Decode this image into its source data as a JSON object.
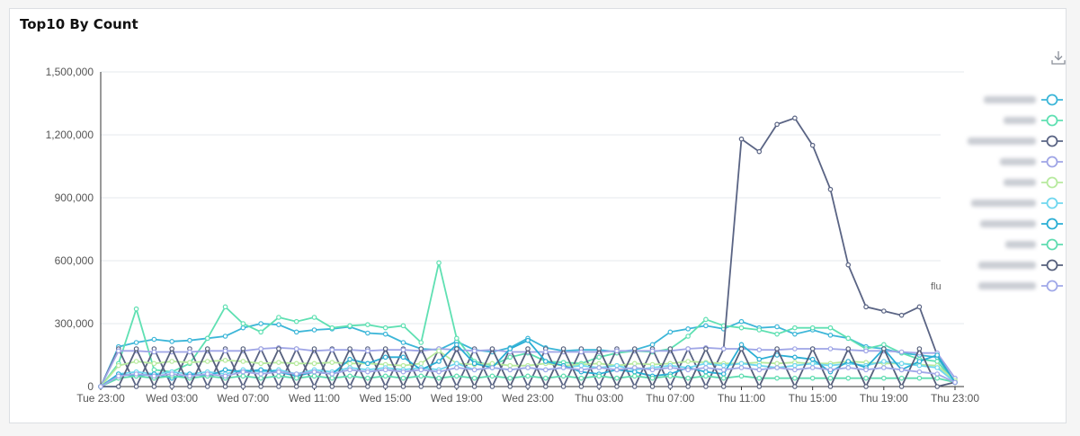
{
  "panel": {
    "title": "Top10 By Count"
  },
  "toolbar": {
    "download_icon": "download-icon"
  },
  "colors": {
    "axis": "#333333",
    "grid": "#e6e9ee",
    "palette": [
      "#3cb6d8",
      "#5fe0b2",
      "#5a6484",
      "#9fa5e6",
      "#b7ea9e",
      "#6fd7ef",
      "#2aaed4",
      "#5fdcb0",
      "#56607c",
      "#a0a8e8"
    ]
  },
  "chart_data": {
    "type": "line",
    "title": "Top10 By Count",
    "xlabel": "",
    "ylabel": "",
    "ylim": [
      0,
      1500000
    ],
    "yticks": [
      0,
      300000,
      600000,
      900000,
      1200000,
      1500000
    ],
    "ytick_labels": [
      "0",
      "300,000",
      "600,000",
      "900,000",
      "1,200,000",
      "1,500,000"
    ],
    "x": [
      "Tue 23:00",
      "Wed 00:00",
      "Wed 01:00",
      "Wed 02:00",
      "Wed 03:00",
      "Wed 04:00",
      "Wed 05:00",
      "Wed 06:00",
      "Wed 07:00",
      "Wed 08:00",
      "Wed 09:00",
      "Wed 10:00",
      "Wed 11:00",
      "Wed 12:00",
      "Wed 13:00",
      "Wed 14:00",
      "Wed 15:00",
      "Wed 16:00",
      "Wed 17:00",
      "Wed 18:00",
      "Wed 19:00",
      "Wed 20:00",
      "Wed 21:00",
      "Wed 22:00",
      "Wed 23:00",
      "Thu 00:00",
      "Thu 01:00",
      "Thu 02:00",
      "Thu 03:00",
      "Thu 04:00",
      "Thu 05:00",
      "Thu 06:00",
      "Thu 07:00",
      "Thu 08:00",
      "Thu 09:00",
      "Thu 10:00",
      "Thu 11:00",
      "Thu 12:00",
      "Thu 13:00",
      "Thu 14:00",
      "Thu 15:00",
      "Thu 16:00",
      "Thu 17:00",
      "Thu 18:00",
      "Thu 19:00",
      "Thu 20:00",
      "Thu 21:00",
      "Thu 22:00",
      "Thu 23:00"
    ],
    "xtick_labels": [
      "Tue 23:00",
      "Wed 03:00",
      "Wed 07:00",
      "Wed 11:00",
      "Wed 15:00",
      "Wed 19:00",
      "Wed 23:00",
      "Thu 03:00",
      "Thu 07:00",
      "Thu 11:00",
      "Thu 15:00",
      "Thu 19:00",
      "Thu 23:00"
    ],
    "legend_position": "right",
    "grid": true,
    "series": [
      {
        "values": [
          0,
          190000,
          210000,
          225000,
          215000,
          220000,
          230000,
          240000,
          280000,
          300000,
          295000,
          260000,
          270000,
          275000,
          285000,
          255000,
          250000,
          210000,
          180000,
          175000,
          215000,
          175000,
          165000,
          185000,
          230000,
          185000,
          170000,
          175000,
          175000,
          165000,
          175000,
          200000,
          260000,
          275000,
          290000,
          275000,
          310000,
          280000,
          285000,
          250000,
          270000,
          245000,
          230000,
          190000,
          180000,
          160000,
          150000,
          140000,
          20000
        ]
      },
      {
        "values": [
          0,
          110000,
          370000,
          80000,
          70000,
          110000,
          230000,
          380000,
          300000,
          260000,
          330000,
          310000,
          330000,
          280000,
          290000,
          295000,
          280000,
          290000,
          210000,
          590000,
          230000,
          120000,
          100000,
          140000,
          160000,
          120000,
          115000,
          110000,
          140000,
          160000,
          170000,
          165000,
          180000,
          240000,
          320000,
          290000,
          280000,
          270000,
          250000,
          280000,
          280000,
          280000,
          230000,
          180000,
          200000,
          160000,
          130000,
          120000,
          20000
        ]
      },
      {
        "values": [
          0,
          180000,
          0,
          180000,
          0,
          180000,
          0,
          180000,
          0,
          180000,
          0,
          180000,
          0,
          180000,
          0,
          180000,
          0,
          180000,
          0,
          180000,
          0,
          180000,
          0,
          180000,
          0,
          180000,
          0,
          180000,
          0,
          180000,
          0,
          180000,
          0,
          180000,
          0,
          180000,
          1180000,
          1120000,
          1250000,
          1280000,
          1150000,
          940000,
          580000,
          380000,
          360000,
          340000,
          380000,
          150000,
          20000
        ]
      },
      {
        "values": [
          0,
          170000,
          170000,
          165000,
          165000,
          165000,
          170000,
          170000,
          170000,
          180000,
          185000,
          180000,
          170000,
          175000,
          175000,
          170000,
          175000,
          175000,
          170000,
          180000,
          175000,
          170000,
          175000,
          165000,
          165000,
          165000,
          165000,
          165000,
          165000,
          170000,
          170000,
          170000,
          170000,
          180000,
          185000,
          180000,
          180000,
          175000,
          175000,
          180000,
          180000,
          180000,
          175000,
          170000,
          170000,
          165000,
          160000,
          160000,
          40000
        ]
      },
      {
        "values": [
          0,
          100000,
          120000,
          110000,
          120000,
          115000,
          120000,
          125000,
          120000,
          110000,
          115000,
          110000,
          110000,
          115000,
          110000,
          110000,
          105000,
          100000,
          110000,
          170000,
          110000,
          105000,
          110000,
          100000,
          100000,
          110000,
          100000,
          105000,
          110000,
          100000,
          110000,
          105000,
          110000,
          120000,
          115000,
          110000,
          110000,
          115000,
          110000,
          115000,
          110000,
          110000,
          120000,
          115000,
          110000,
          110000,
          105000,
          100000,
          30000
        ]
      },
      {
        "values": [
          0,
          60000,
          70000,
          60000,
          70000,
          60000,
          70000,
          60000,
          80000,
          70000,
          80000,
          60000,
          80000,
          70000,
          90000,
          80000,
          90000,
          80000,
          90000,
          80000,
          110000,
          80000,
          90000,
          80000,
          90000,
          80000,
          90000,
          100000,
          90000,
          100000,
          80000,
          90000,
          100000,
          90000,
          110000,
          100000,
          110000,
          100000,
          90000,
          100000,
          110000,
          100000,
          110000,
          100000,
          120000,
          110000,
          100000,
          90000,
          20000
        ]
      },
      {
        "values": [
          0,
          60000,
          50000,
          60000,
          40000,
          60000,
          50000,
          80000,
          70000,
          80000,
          70000,
          50000,
          70000,
          60000,
          130000,
          110000,
          140000,
          140000,
          80000,
          120000,
          200000,
          110000,
          90000,
          180000,
          220000,
          120000,
          100000,
          70000,
          60000,
          80000,
          70000,
          50000,
          60000,
          90000,
          70000,
          60000,
          200000,
          130000,
          150000,
          140000,
          130000,
          70000,
          120000,
          90000,
          180000,
          80000,
          120000,
          150000,
          20000
        ]
      },
      {
        "values": [
          0,
          40000,
          50000,
          40000,
          50000,
          40000,
          50000,
          40000,
          50000,
          40000,
          50000,
          40000,
          50000,
          40000,
          50000,
          40000,
          50000,
          40000,
          50000,
          40000,
          50000,
          40000,
          50000,
          40000,
          50000,
          40000,
          50000,
          40000,
          50000,
          40000,
          50000,
          40000,
          50000,
          40000,
          50000,
          40000,
          50000,
          40000,
          40000,
          40000,
          40000,
          40000,
          40000,
          40000,
          40000,
          40000,
          40000,
          40000,
          20000
        ]
      },
      {
        "values": [
          0,
          0,
          180000,
          0,
          180000,
          0,
          180000,
          0,
          180000,
          0,
          180000,
          0,
          180000,
          0,
          180000,
          0,
          180000,
          0,
          180000,
          0,
          180000,
          0,
          180000,
          0,
          180000,
          0,
          180000,
          0,
          180000,
          0,
          180000,
          0,
          180000,
          0,
          180000,
          0,
          180000,
          0,
          180000,
          0,
          180000,
          0,
          180000,
          0,
          180000,
          0,
          180000,
          0,
          20000
        ]
      },
      {
        "values": [
          0,
          50000,
          60000,
          50000,
          60000,
          50000,
          60000,
          50000,
          70000,
          60000,
          70000,
          60000,
          70000,
          60000,
          80000,
          70000,
          80000,
          70000,
          80000,
          70000,
          90000,
          80000,
          90000,
          80000,
          90000,
          80000,
          90000,
          80000,
          90000,
          80000,
          90000,
          80000,
          90000,
          80000,
          90000,
          80000,
          90000,
          80000,
          90000,
          80000,
          90000,
          80000,
          90000,
          80000,
          90000,
          80000,
          70000,
          60000,
          20000
        ]
      }
    ]
  },
  "legend": {
    "visible_label": "flu"
  }
}
